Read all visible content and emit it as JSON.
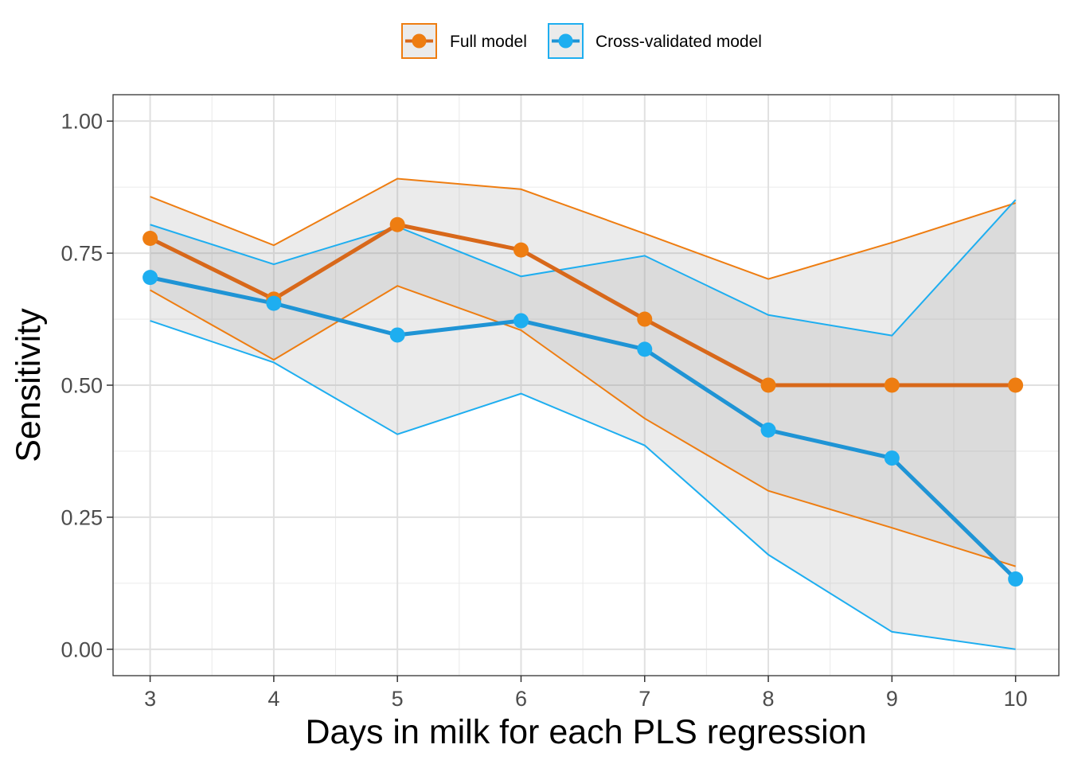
{
  "chart_data": {
    "type": "line",
    "xlabel": "Days in milk for each PLS regression",
    "ylabel": "Sensitivity",
    "x": [
      3,
      4,
      5,
      6,
      7,
      8,
      9,
      10
    ],
    "xlim": [
      2.7,
      10.35
    ],
    "ylim": [
      -0.05,
      1.05
    ],
    "xticks": [
      3,
      4,
      5,
      6,
      7,
      8,
      9,
      10
    ],
    "yticks": [
      0.0,
      0.25,
      0.5,
      0.75,
      1.0
    ],
    "ytick_labels": [
      "0.00",
      "0.25",
      "0.50",
      "0.75",
      "1.00"
    ],
    "grid": true,
    "legend_position": "top",
    "series": [
      {
        "name": "Full model",
        "color": "#ee7d11",
        "line_color": "#d8681a",
        "values": [
          0.778,
          0.663,
          0.804,
          0.756,
          0.625,
          0.5,
          0.5,
          0.5
        ],
        "upper": [
          0.857,
          0.765,
          0.891,
          0.871,
          0.787,
          0.701,
          0.77,
          0.845
        ],
        "lower": [
          0.68,
          0.548,
          0.688,
          0.604,
          0.437,
          0.3,
          0.23,
          0.157
        ]
      },
      {
        "name": "Cross-validated model",
        "color": "#1eaef0",
        "line_color": "#1f94d5",
        "values": [
          0.704,
          0.655,
          0.595,
          0.622,
          0.568,
          0.415,
          0.362,
          0.133
        ],
        "upper": [
          0.804,
          0.729,
          0.8,
          0.706,
          0.745,
          0.633,
          0.594,
          0.851
        ],
        "lower": [
          0.622,
          0.543,
          0.407,
          0.484,
          0.386,
          0.179,
          0.033,
          0.0
        ]
      }
    ]
  }
}
